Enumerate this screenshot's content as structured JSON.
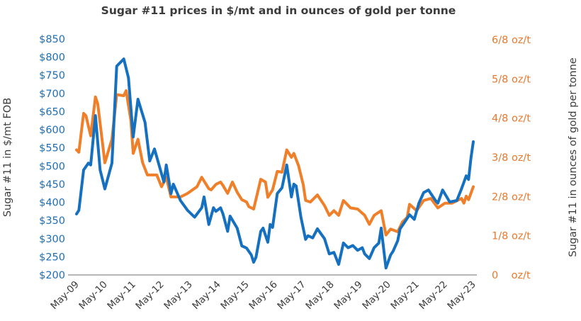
{
  "chart_data": {
    "type": "line",
    "title": "Sugar #11 prices in $/mt and in ounces of gold per tonne",
    "ylabel_left": "Sugar #11 in $/mt FOB",
    "ylabel_right": "Sugar #11 in ounces of gold per tonne",
    "x_unit": "months since May-09",
    "x_ticks": [
      "May-09",
      "May-10",
      "May-11",
      "May-12",
      "May-13",
      "May-14",
      "May-15",
      "May-16",
      "May-17",
      "May-18",
      "May-19",
      "May-20",
      "May-21",
      "May-22",
      "May-23"
    ],
    "ylim_left": [
      200,
      850
    ],
    "yticks_left": [
      "$200",
      "$250",
      "$300",
      "$350",
      "$400",
      "$450",
      "$500",
      "$550",
      "$600",
      "$650",
      "$700",
      "$750",
      "$800",
      "$850"
    ],
    "ylim_right_eighths": [
      0,
      6
    ],
    "yticks_right": [
      "0    oz/t",
      "1/8 oz/t",
      "2/8 oz/t",
      "3/8 oz/t",
      "4/8 oz/t",
      "5/8 oz/t",
      "6/8 oz/t"
    ],
    "grid": false,
    "colors": {
      "usd": "#1670c0",
      "gold": "#f07f2a",
      "left_ticks": "#1f6fb6",
      "right_ticks": "#e6792e"
    },
    "series": [
      {
        "name": "Sugar #11 $/mt FOB",
        "axis": "left",
        "points": [
          [
            0,
            368
          ],
          [
            1,
            378
          ],
          [
            3,
            489
          ],
          [
            5,
            508
          ],
          [
            6,
            503
          ],
          [
            8,
            639
          ],
          [
            10,
            489
          ],
          [
            12,
            437
          ],
          [
            15,
            508
          ],
          [
            17,
            775
          ],
          [
            20,
            795
          ],
          [
            22,
            743
          ],
          [
            24,
            580
          ],
          [
            26,
            684
          ],
          [
            29,
            620
          ],
          [
            31,
            514
          ],
          [
            33,
            547
          ],
          [
            37,
            456
          ],
          [
            38,
            503
          ],
          [
            40,
            424
          ],
          [
            41,
            450
          ],
          [
            44,
            405
          ],
          [
            47,
            378
          ],
          [
            50,
            359
          ],
          [
            53,
            385
          ],
          [
            54,
            415
          ],
          [
            56,
            339
          ],
          [
            58,
            385
          ],
          [
            59,
            375
          ],
          [
            61,
            385
          ],
          [
            62,
            368
          ],
          [
            64,
            320
          ],
          [
            65,
            362
          ],
          [
            68,
            329
          ],
          [
            70,
            280
          ],
          [
            72,
            274
          ],
          [
            74,
            255
          ],
          [
            75,
            235
          ],
          [
            76,
            249
          ],
          [
            78,
            320
          ],
          [
            79,
            329
          ],
          [
            81,
            290
          ],
          [
            82,
            339
          ],
          [
            83,
            331
          ],
          [
            85,
            424
          ],
          [
            87,
            440
          ],
          [
            89,
            503
          ],
          [
            91,
            415
          ],
          [
            92,
            450
          ],
          [
            93,
            445
          ],
          [
            95,
            359
          ],
          [
            97,
            298
          ],
          [
            98,
            308
          ],
          [
            100,
            302
          ],
          [
            102,
            327
          ],
          [
            105,
            300
          ],
          [
            107,
            258
          ],
          [
            109,
            262
          ],
          [
            111,
            229
          ],
          [
            113,
            288
          ],
          [
            115,
            275
          ],
          [
            117,
            281
          ],
          [
            119,
            268
          ],
          [
            121,
            275
          ],
          [
            122,
            258
          ],
          [
            124,
            245
          ],
          [
            126,
            275
          ],
          [
            128,
            288
          ],
          [
            129,
            329
          ],
          [
            131,
            219
          ],
          [
            133,
            255
          ],
          [
            134,
            265
          ],
          [
            136,
            294
          ],
          [
            137,
            327
          ],
          [
            139,
            346
          ],
          [
            141,
            366
          ],
          [
            143,
            353
          ],
          [
            145,
            398
          ],
          [
            147,
            427
          ],
          [
            149,
            434
          ],
          [
            152,
            405
          ],
          [
            153,
            398
          ],
          [
            155,
            434
          ],
          [
            158,
            401
          ],
          [
            161,
            405
          ],
          [
            163,
            437
          ],
          [
            165,
            473
          ],
          [
            166,
            463
          ],
          [
            167,
            522
          ],
          [
            168,
            567
          ]
        ]
      },
      {
        "name": "Sugar #11 oz gold/t (eighths)",
        "axis": "right",
        "points": [
          [
            0,
            3.19
          ],
          [
            1,
            3.13
          ],
          [
            3,
            4.12
          ],
          [
            4,
            4.06
          ],
          [
            6,
            3.55
          ],
          [
            8,
            4.54
          ],
          [
            9,
            4.36
          ],
          [
            12,
            2.86
          ],
          [
            15,
            3.46
          ],
          [
            17,
            4.6
          ],
          [
            20,
            4.57
          ],
          [
            21,
            4.7
          ],
          [
            23,
            3.94
          ],
          [
            24,
            3.1
          ],
          [
            26,
            3.46
          ],
          [
            28,
            2.86
          ],
          [
            30,
            2.55
          ],
          [
            34,
            2.55
          ],
          [
            36,
            2.25
          ],
          [
            38,
            2.49
          ],
          [
            40,
            1.99
          ],
          [
            44,
            1.99
          ],
          [
            47,
            2.08
          ],
          [
            51,
            2.25
          ],
          [
            53,
            2.49
          ],
          [
            56,
            2.2
          ],
          [
            57,
            2.17
          ],
          [
            59,
            2.31
          ],
          [
            61,
            2.37
          ],
          [
            62,
            2.28
          ],
          [
            64,
            2.08
          ],
          [
            66,
            2.37
          ],
          [
            68,
            2.11
          ],
          [
            70,
            1.92
          ],
          [
            72,
            1.86
          ],
          [
            73,
            1.74
          ],
          [
            75,
            1.68
          ],
          [
            78,
            2.44
          ],
          [
            80,
            2.37
          ],
          [
            81,
            1.98
          ],
          [
            83,
            2.17
          ],
          [
            85,
            2.64
          ],
          [
            87,
            2.62
          ],
          [
            89,
            3.19
          ],
          [
            91,
            3.0
          ],
          [
            92,
            3.1
          ],
          [
            94,
            2.79
          ],
          [
            96,
            2.3
          ],
          [
            97,
            1.9
          ],
          [
            99,
            1.86
          ],
          [
            102,
            2.04
          ],
          [
            105,
            1.77
          ],
          [
            107,
            1.52
          ],
          [
            109,
            1.64
          ],
          [
            111,
            1.52
          ],
          [
            113,
            1.9
          ],
          [
            116,
            1.71
          ],
          [
            119,
            1.68
          ],
          [
            122,
            1.52
          ],
          [
            124,
            1.29
          ],
          [
            126,
            1.52
          ],
          [
            129,
            1.64
          ],
          [
            131,
            1.02
          ],
          [
            133,
            1.17
          ],
          [
            136,
            1.1
          ],
          [
            138,
            1.35
          ],
          [
            140,
            1.47
          ],
          [
            141,
            1.8
          ],
          [
            144,
            1.64
          ],
          [
            147,
            1.9
          ],
          [
            150,
            1.95
          ],
          [
            153,
            1.71
          ],
          [
            156,
            1.83
          ],
          [
            159,
            1.83
          ],
          [
            163,
            1.95
          ],
          [
            164,
            1.83
          ],
          [
            165,
            2.01
          ],
          [
            166,
            1.92
          ],
          [
            168,
            2.25
          ]
        ]
      }
    ]
  }
}
